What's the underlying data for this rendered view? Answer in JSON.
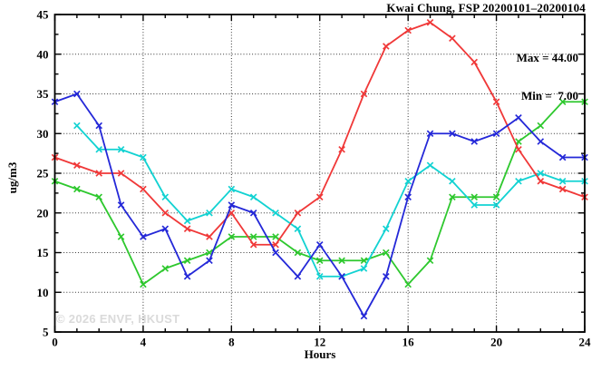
{
  "chart_data": {
    "type": "line",
    "title": "Kwai Chung, FSP 20200101–20200104",
    "xlabel": "Hours",
    "ylabel": "ug/m3",
    "watermark": "© 2026 ENVF, HKUST",
    "legend_box": [
      "Max = 44.00",
      "Min =  7.00"
    ],
    "xlim": [
      0,
      24
    ],
    "ylim": [
      5,
      45
    ],
    "x_tick_values": [
      0,
      4,
      8,
      12,
      16,
      20,
      24
    ],
    "x_tick_labels": [
      "0",
      "4",
      "8",
      "12",
      "16",
      "20",
      "24"
    ],
    "y_tick_values": [
      5,
      10,
      15,
      20,
      25,
      30,
      35,
      40,
      45
    ],
    "y_tick_labels": [
      "5",
      "10",
      "15",
      "20",
      "25",
      "30",
      "35",
      "40",
      "45"
    ],
    "x_minor_step": 1,
    "y_minor_step": 2.5,
    "grid_x": [
      4,
      8,
      12,
      16,
      20
    ],
    "grid_y": [
      10,
      15,
      20,
      25,
      30,
      35,
      40
    ],
    "grid_style": "dotted",
    "legend_position": "top-right-inside",
    "x": [
      0,
      1,
      2,
      3,
      4,
      5,
      6,
      7,
      8,
      9,
      10,
      11,
      12,
      13,
      14,
      15,
      16,
      17,
      18,
      19,
      20,
      21,
      22,
      23,
      24
    ],
    "series": [
      {
        "name": "green",
        "color": "#2ec82e",
        "values": [
          24,
          23,
          22,
          17,
          11,
          13,
          14,
          15,
          17,
          17,
          17,
          15,
          14,
          14,
          14,
          15,
          11,
          14,
          22,
          22,
          22,
          29,
          31,
          34,
          34
        ]
      },
      {
        "name": "cyan",
        "color": "#12d2d2",
        "values": [
          null,
          31,
          28,
          28,
          27,
          22,
          19,
          20,
          23,
          22,
          20,
          18,
          12,
          12,
          13,
          18,
          24,
          26,
          24,
          21,
          21,
          24,
          25,
          24,
          24
        ]
      },
      {
        "name": "red",
        "color": "#f03838",
        "values": [
          27,
          26,
          25,
          25,
          23,
          20,
          18,
          17,
          20,
          16,
          16,
          20,
          22,
          28,
          35,
          41,
          43,
          44,
          42,
          39,
          34,
          28,
          24,
          23,
          22
        ]
      },
      {
        "name": "blue",
        "color": "#2428d8",
        "values": [
          34,
          35,
          31,
          21,
          17,
          18,
          12,
          14,
          21,
          20,
          15,
          12,
          16,
          12,
          7,
          12,
          22,
          30,
          30,
          29,
          30,
          32,
          29,
          27,
          27
        ]
      }
    ]
  },
  "frame": {
    "axis_color": "#000000",
    "background": "#ffffff",
    "watermark_color": "#dadada"
  }
}
